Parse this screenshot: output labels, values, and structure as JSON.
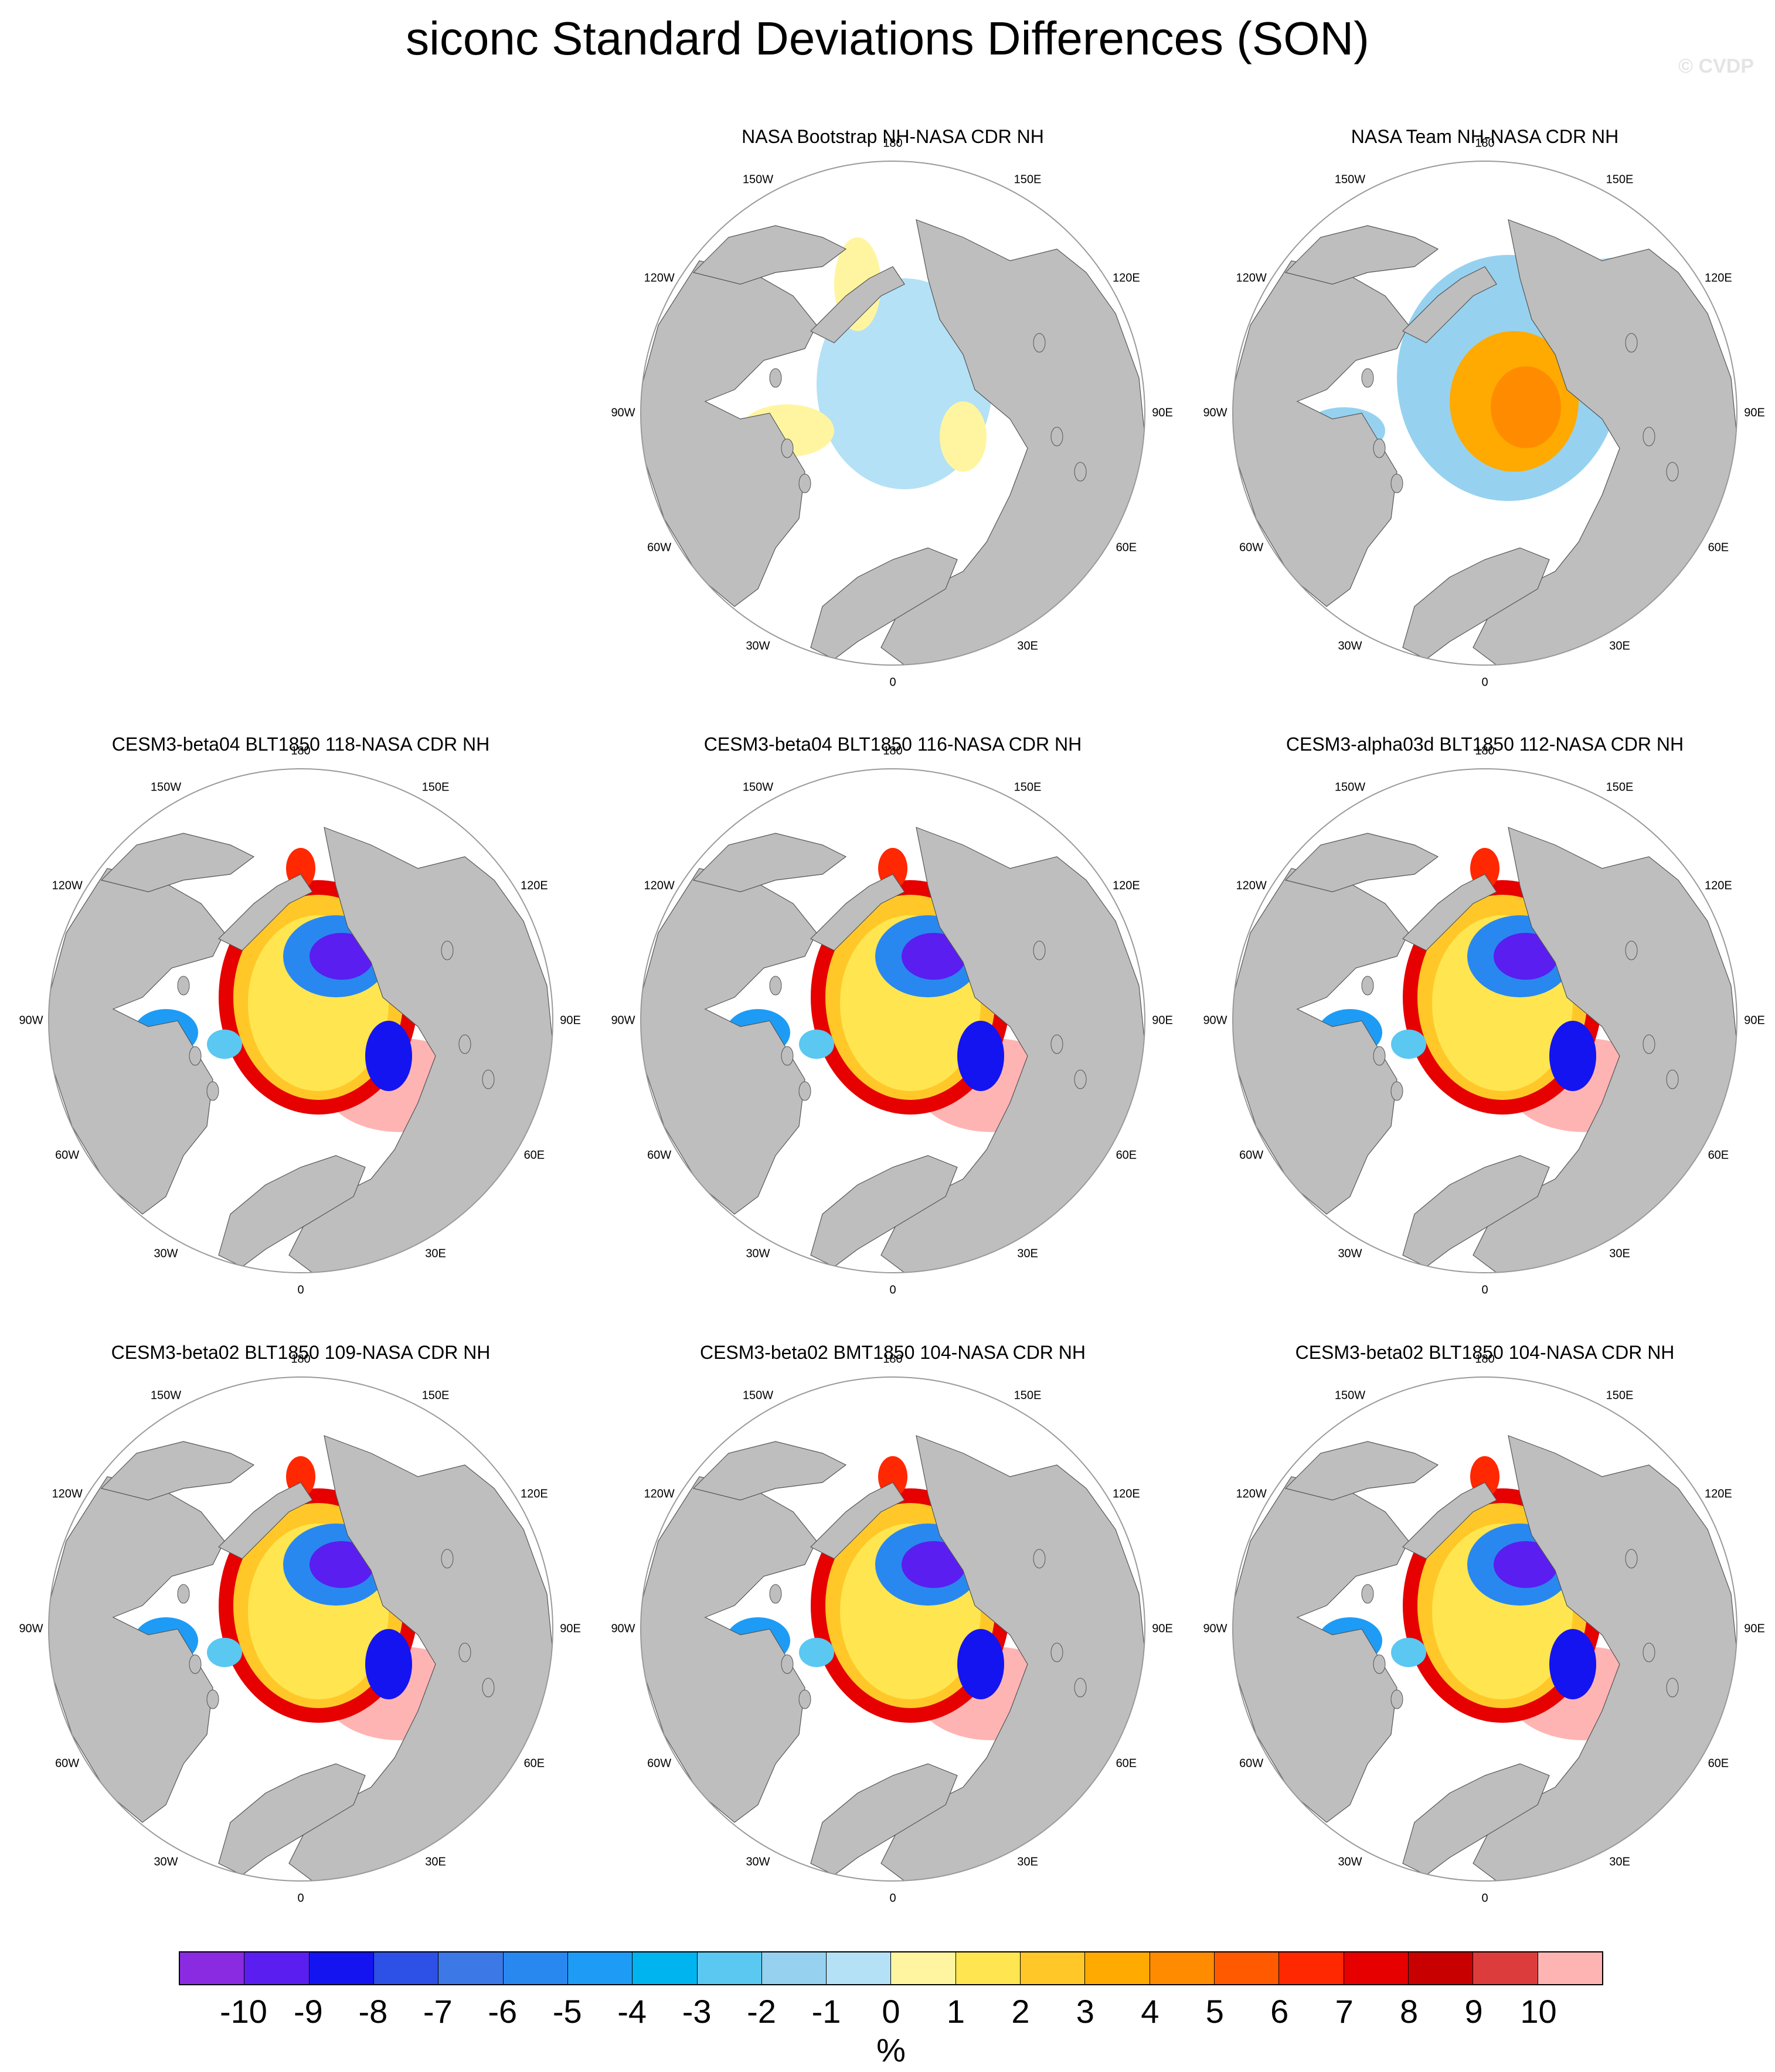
{
  "title": "siconc Standard Deviations Differences (SON)",
  "watermark": "© CVDP",
  "panels": [
    {
      "title": "NASA Bootstrap NH-NASA CDR NH",
      "pattern": "bootstrap"
    },
    {
      "title": "NASA Team NH-NASA CDR NH",
      "pattern": "team"
    },
    {
      "title": "CESM3-beta04 BLT1850 118-NASA CDR NH",
      "pattern": "model"
    },
    {
      "title": "CESM3-beta04 BLT1850 116-NASA CDR NH",
      "pattern": "model"
    },
    {
      "title": "CESM3-alpha03d BLT1850 112-NASA CDR NH",
      "pattern": "model"
    },
    {
      "title": "CESM3-beta02 BLT1850 109-NASA CDR NH",
      "pattern": "model"
    },
    {
      "title": "CESM3-beta02 BMT1850 104-NASA CDR NH",
      "pattern": "model"
    },
    {
      "title": "CESM3-beta02 BLT1850 104-NASA CDR NH",
      "pattern": "model"
    }
  ],
  "longitude_labels": [
    "180",
    "150E",
    "120E",
    "90E",
    "60E",
    "30E",
    "0",
    "30W",
    "60W",
    "90W",
    "120W",
    "150W"
  ],
  "colorbar": {
    "unit": "%",
    "labels": [
      "-10",
      "-9",
      "-8",
      "-7",
      "-6",
      "-5",
      "-4",
      "-3",
      "-2",
      "-1",
      "0",
      "1",
      "2",
      "3",
      "4",
      "5",
      "6",
      "7",
      "8",
      "9",
      "10"
    ],
    "colors": [
      "#8a2be2",
      "#5a1ef0",
      "#1414f0",
      "#2d50e6",
      "#3c78e6",
      "#2888f0",
      "#1e9cf5",
      "#00b4f0",
      "#5ac8f0",
      "#96d2f0",
      "#b4e1f5",
      "#fff5a0",
      "#ffe650",
      "#ffc828",
      "#ffaa00",
      "#ff8c00",
      "#ff5a00",
      "#ff2800",
      "#e60000",
      "#c80000",
      "#dc3c3c",
      "#ffb4b4"
    ]
  },
  "colors": {
    "land": "#bebebe",
    "ocean": "#ffffff",
    "grid_circle": "#9a9a9a"
  }
}
